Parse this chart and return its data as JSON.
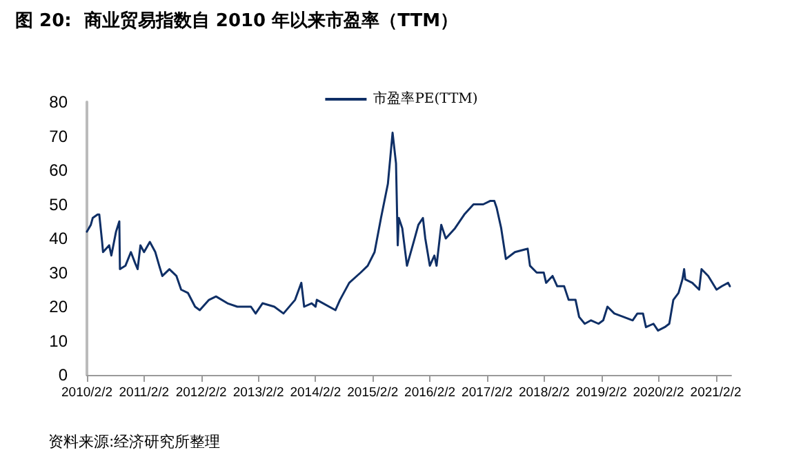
{
  "chart_data": {
    "type": "line",
    "title": "图 20:  商业贸易指数自 2010 年以来市盈率（TTM）",
    "annotations": [
      "资料来源:经济研究所整理"
    ],
    "x": [
      "2010-02-02",
      "2010-02-27",
      "2010-03-11",
      "2010-04-11",
      "2010-04-22",
      "2010-05-10",
      "2010-05-16",
      "2010-06-24",
      "2010-07-08",
      "2010-08-07",
      "2010-08-28",
      "2010-09-01",
      "2010-10-06",
      "2010-11-10",
      "2010-12-05",
      "2010-12-23",
      "2011-01-10",
      "2011-02-02",
      "2011-03-11",
      "2011-04-15",
      "2011-05-10",
      "2011-05-30",
      "2011-07-14",
      "2011-08-28",
      "2011-09-27",
      "2011-11-10",
      "2011-12-25",
      "2012-01-24",
      "2012-03-23",
      "2012-05-07",
      "2012-07-19",
      "2012-09-20",
      "2012-12-16",
      "2013-01-15",
      "2013-02-28",
      "2013-05-14",
      "2013-07-12",
      "2013-09-24",
      "2013-11-03",
      "2013-11-21",
      "2014-01-08",
      "2014-02-02",
      "2014-02-10",
      "2014-06-09",
      "2014-07-08",
      "2014-09-05",
      "2014-11-17",
      "2015-01-01",
      "2015-02-14",
      "2015-03-27",
      "2015-05-10",
      "2015-06-09",
      "2015-07-01",
      "2015-07-12",
      "2015-07-19",
      "2015-08-10",
      "2015-09-09",
      "2015-10-22",
      "2015-11-21",
      "2015-12-20",
      "2016-01-04",
      "2016-02-02",
      "2016-03-02",
      "2016-03-16",
      "2016-04-15",
      "2016-05-14",
      "2016-07-12",
      "2016-09-09",
      "2016-11-07",
      "2017-01-08",
      "2017-02-21",
      "2017-03-20",
      "2017-04-04",
      "2017-05-03",
      "2017-06-02",
      "2017-07-30",
      "2017-10-19",
      "2017-11-03",
      "2017-12-16",
      "2018-01-30",
      "2018-02-14",
      "2018-03-27",
      "2018-04-26",
      "2018-06-09",
      "2018-07-08",
      "2018-08-21",
      "2018-09-13",
      "2018-10-19",
      "2018-11-28",
      "2019-01-15",
      "2019-02-14",
      "2019-03-13",
      "2019-04-26",
      "2019-06-24",
      "2019-08-21",
      "2019-09-20",
      "2019-10-26",
      "2019-11-14",
      "2020-01-01",
      "2020-01-30",
      "2020-03-13",
      "2020-04-11",
      "2020-05-07",
      "2020-06-09",
      "2020-07-04",
      "2020-07-15",
      "2020-07-22",
      "2020-09-05",
      "2020-10-19",
      "2020-11-03",
      "2020-12-16",
      "2021-02-07",
      "2021-03-13",
      "2021-04-22",
      "2021-05-03"
    ],
    "series": [
      {
        "name": "市盈率PE(TTM)",
        "color": "#0f2f66",
        "values": [
          42,
          44,
          46,
          47,
          47,
          39,
          36,
          38,
          35,
          42,
          45,
          31,
          32,
          36,
          33,
          31,
          38,
          36,
          39,
          36,
          32,
          29,
          31,
          29,
          25,
          24,
          20,
          19,
          22,
          23,
          21,
          20,
          20,
          18,
          21,
          20,
          18,
          22,
          27,
          20,
          21,
          20,
          22,
          19,
          22,
          27,
          30,
          32,
          36,
          46,
          56,
          71,
          62,
          38,
          46,
          43,
          32,
          39,
          44,
          46,
          40,
          32,
          35,
          32,
          44,
          40,
          43,
          47,
          50,
          50,
          51,
          51,
          49,
          43,
          34,
          36,
          37,
          32,
          30,
          30,
          27,
          29,
          26,
          26,
          22,
          22,
          17,
          15,
          16,
          15,
          16,
          20,
          18,
          17,
          16,
          18,
          18,
          14,
          15,
          13,
          14,
          15,
          22,
          24,
          28,
          31,
          28,
          27,
          25,
          31,
          29,
          25,
          26,
          27,
          26
        ]
      }
    ],
    "xlim": [
      "2010-02-02",
      "2021-05-12"
    ],
    "xticks": [
      {
        "value": "2010-02-02",
        "label": "2010/2/2"
      },
      {
        "value": "2011-02-02",
        "label": "2011/2/2"
      },
      {
        "value": "2012-02-02",
        "label": "2012/2/2"
      },
      {
        "value": "2013-02-02",
        "label": "2013/2/2"
      },
      {
        "value": "2014-02-02",
        "label": "2014/2/2"
      },
      {
        "value": "2015-02-02",
        "label": "2015/2/2"
      },
      {
        "value": "2016-02-02",
        "label": "2016/2/2"
      },
      {
        "value": "2017-02-02",
        "label": "2017/2/2"
      },
      {
        "value": "2018-02-02",
        "label": "2018/2/2"
      },
      {
        "value": "2019-02-02",
        "label": "2019/2/2"
      },
      {
        "value": "2020-02-02",
        "label": "2020/2/2"
      },
      {
        "value": "2021-02-02",
        "label": "2021/2/2"
      }
    ],
    "ylim": [
      0,
      80
    ],
    "yticks": [
      0,
      10,
      20,
      30,
      40,
      50,
      60,
      70,
      80
    ],
    "grid": false,
    "legend": "top",
    "marker": "none",
    "line_style": "solid"
  }
}
